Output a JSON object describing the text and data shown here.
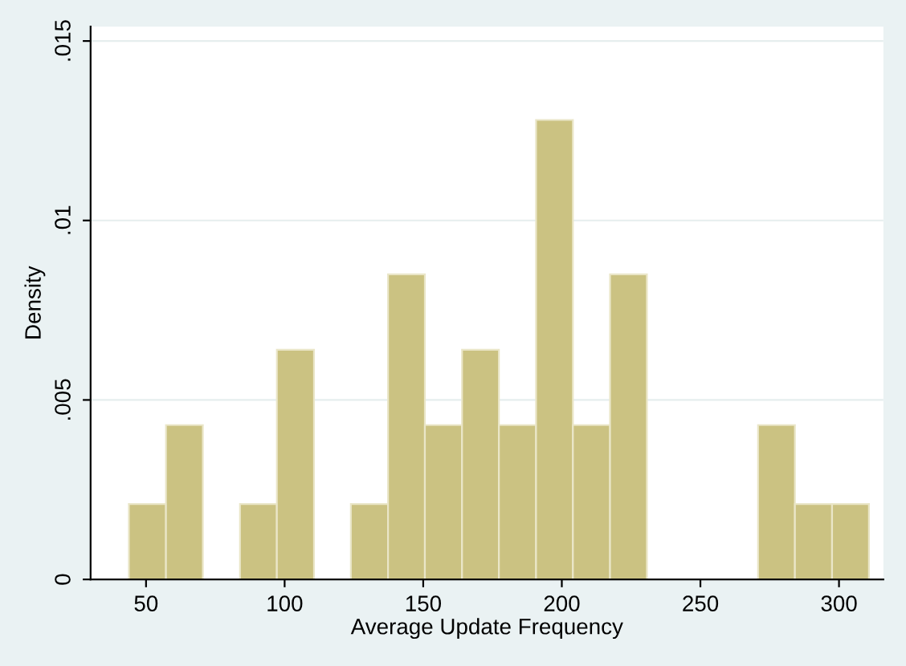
{
  "chart_data": {
    "type": "histogram",
    "xlabel": "Average Update Frequency",
    "ylabel": "Density",
    "bins": [
      43.8,
      57.2,
      70.5,
      83.9,
      97.2,
      110.6,
      123.9,
      137.3,
      150.6,
      164.0,
      177.3,
      190.7,
      204.0,
      217.4,
      230.7,
      244.1,
      257.4,
      270.8,
      284.1,
      297.5,
      310.8
    ],
    "values": [
      0.0021,
      0.0043,
      0,
      0.0021,
      0.0064,
      0,
      0.0021,
      0.0085,
      0.0043,
      0.0064,
      0.0043,
      0.0128,
      0.0043,
      0.0085,
      0,
      0,
      0,
      0.0043,
      0.0021,
      0.0021
    ],
    "color": "#cbc282",
    "xlim": [
      30,
      316
    ],
    "xticks": [
      50,
      100,
      150,
      200,
      250,
      300
    ],
    "ylim": [
      0,
      0.0154
    ],
    "yticks": [
      {
        "value": 0,
        "label": "0"
      },
      {
        "value": 0.005,
        "label": ".005"
      },
      {
        "value": 0.01,
        "label": ".01"
      },
      {
        "value": 0.015,
        "label": ".015"
      }
    ],
    "grid": "y",
    "legend": false
  }
}
